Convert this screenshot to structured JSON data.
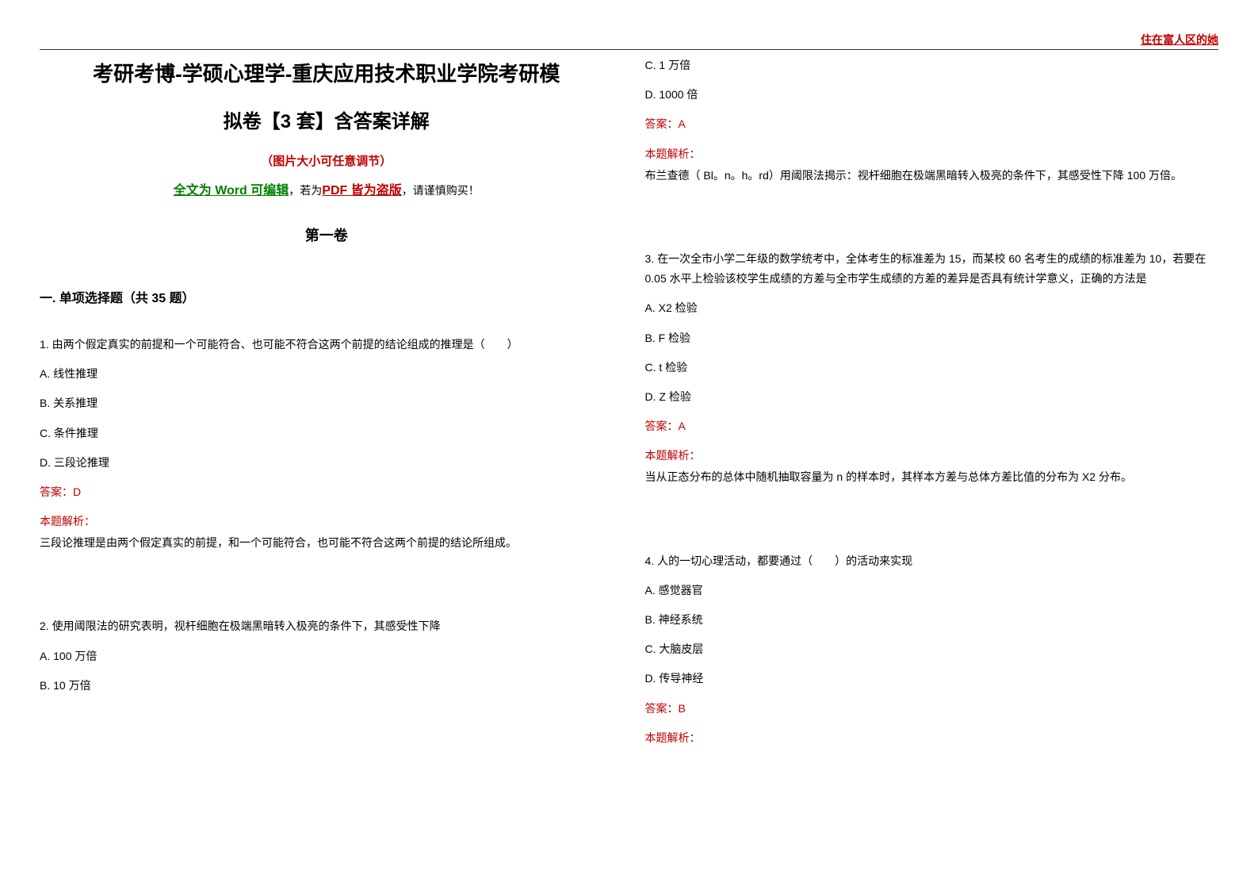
{
  "header": {
    "watermark": "住在富人区的她"
  },
  "titleBlock": {
    "line1": "考研考博-学硕心理学-重庆应用技术职业学院考研模",
    "line2": "拟卷【3 套】含答案详解",
    "subtitle": "（图片大小可任意调节）",
    "noticePart1": "全文为 Word 可编辑",
    "noticePart2": "，若为",
    "noticePart3": "PDF 皆为盗版",
    "noticePart4": "，请谨慎购买！",
    "volume": "第一卷"
  },
  "section": {
    "heading": "一. 单项选择题（共 35 题）"
  },
  "q1": {
    "stem": "1. 由两个假定真实的前提和一个可能符合、也可能不符合这两个前提的结论组成的推理是（　　）",
    "a": "A. 线性推理",
    "b": "B. 关系推理",
    "c": "C. 条件推理",
    "d": "D. 三段论推理",
    "answer": "答案：D",
    "analysisLabel": "本题解析：",
    "analysisText": "三段论推理是由两个假定真实的前提，和一个可能符合，也可能不符合这两个前提的结论所组成。"
  },
  "q2": {
    "stem": "2. 使用阈限法的研究表明，视杆细胞在极端黑暗转入极亮的条件下，其感受性下降",
    "a": "A. 100 万倍",
    "b": "B. 10 万倍",
    "c": "C. 1 万倍",
    "d": "D. 1000 倍",
    "answer": "答案：A",
    "analysisLabel": "本题解析：",
    "analysisText": "布兰查德（ Bl。n。h。rd）用阈限法揭示：视杆细胞在极端黑暗转入极亮的条件下，其感受性下降 100 万倍。"
  },
  "q3": {
    "stem": "3.  在一次全市小学二年级的数学统考中，全体考生的标准差为 15，而某校 60 名考生的成绩的标准差为 10，若要在 0.05 水平上检验该校学生成绩的方差与全市学生成绩的方差的差异是否具有统计学意义，正确的方法是",
    "a": "A. X2 检验",
    "b": "B. F 检验",
    "c": "C. t 检验",
    "d": "D. Z 检验",
    "answer": "答案：A",
    "analysisLabel": "本题解析：",
    "analysisText": "当从正态分布的总体中随机抽取容量为 n 的样本时，其样本方差与总体方差比值的分布为 X2 分布。"
  },
  "q4": {
    "stem": "4. 人的一切心理活动，都要通过（　　）的活动来实现",
    "a": "A. 感觉器官",
    "b": "B. 神经系统",
    "c": "C. 大脑皮层",
    "d": "D. 传导神经",
    "answer": "答案：B",
    "analysisLabel": "本题解析："
  },
  "colors": {
    "red": "#c00000",
    "green": "#008000",
    "text": "#000000",
    "background": "#ffffff"
  }
}
